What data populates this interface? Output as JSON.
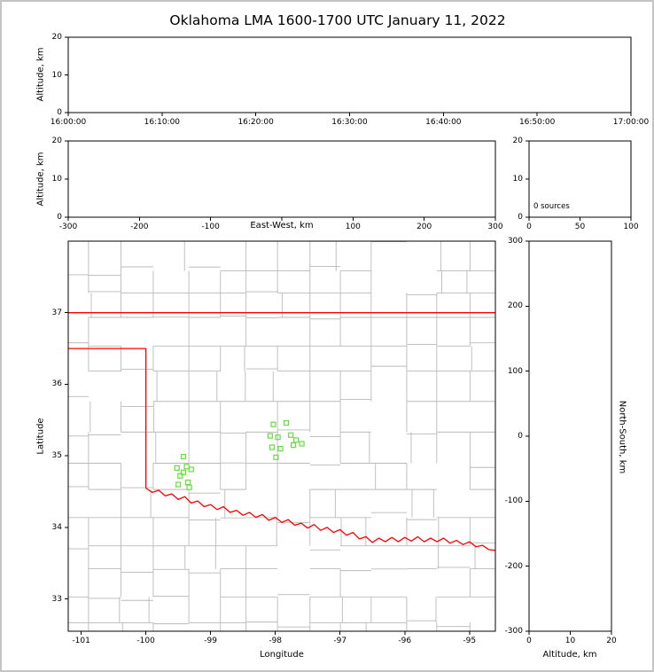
{
  "figure": {
    "frame_color": "#c4c4c4",
    "background": "#ffffff"
  },
  "chart_data": {
    "type": "scatter",
    "title": "Oklahoma LMA 1600-1700 UTC January 11, 2022",
    "legend_position": "none",
    "grid": false,
    "panels": {
      "time_height": {
        "description": "time vs altitude panel, no sources plotted",
        "xticks": [
          "16:00:00",
          "16:10:00",
          "16:20:00",
          "16:30:00",
          "16:40:00",
          "16:50:00",
          "17:00:00"
        ],
        "ylabel": "Altitude, km",
        "yticks": [
          "0",
          "10",
          "20"
        ],
        "ylim": [
          0,
          20
        ],
        "points": []
      },
      "ew_height": {
        "description": "east-west vs altitude panel, no sources plotted",
        "xlabel": "East-West, km",
        "xticks": [
          -300,
          -200,
          -100,
          0,
          100,
          200,
          300
        ],
        "xtick_labels": [
          "-300",
          "-200",
          "-100",
          "",
          "100",
          "200",
          "300"
        ],
        "xlim": [
          -300,
          300
        ],
        "ylabel": "Altitude, km",
        "yticks": [
          "0",
          "10",
          "20"
        ],
        "ylim": [
          0,
          20
        ],
        "points": []
      },
      "altitude_histogram": {
        "description": "altitude histogram panel",
        "annotation": "0 sources",
        "xticks": [
          "0",
          "50",
          "100"
        ],
        "xlim": [
          0,
          100
        ],
        "yticks": [
          "0",
          "10",
          "20"
        ],
        "ylim": [
          0,
          20
        ],
        "points": []
      },
      "map": {
        "description": "plan-view map of Oklahoma with county lines, red state/river borders and green source squares",
        "xlabel": "Longitude",
        "ylabel": "Latitude",
        "xticks": [
          "-101",
          "-100",
          "-99",
          "-98",
          "-97",
          "-96",
          "-95"
        ],
        "yticks": [
          "33",
          "34",
          "35",
          "36",
          "37"
        ],
        "xlim": [
          -101.2,
          -94.6
        ],
        "ylim": [
          32.55,
          38.0
        ],
        "grid_seed": 11,
        "county_line_color": "#b9b9b9",
        "state_border_color": "#ff0000",
        "source_color": "#62df3a",
        "state_border": [
          {
            "name": "oklahoma-kansas-border",
            "points": [
              [
                -101.2,
                37.0
              ],
              [
                -94.6,
                37.0
              ]
            ]
          },
          {
            "name": "panhandle-border",
            "points": [
              [
                -101.2,
                36.5
              ],
              [
                -100.0,
                36.5
              ],
              [
                -100.0,
                34.55
              ]
            ]
          },
          {
            "name": "red-river-border",
            "points": [
              [
                -100.0,
                34.55
              ],
              [
                -99.9,
                34.49
              ],
              [
                -99.8,
                34.52
              ],
              [
                -99.7,
                34.44
              ],
              [
                -99.6,
                34.47
              ],
              [
                -99.5,
                34.39
              ],
              [
                -99.4,
                34.43
              ],
              [
                -99.3,
                34.34
              ],
              [
                -99.2,
                34.37
              ],
              [
                -99.1,
                34.29
              ],
              [
                -99.0,
                34.32
              ],
              [
                -98.9,
                34.25
              ],
              [
                -98.8,
                34.29
              ],
              [
                -98.7,
                34.21
              ],
              [
                -98.6,
                34.24
              ],
              [
                -98.5,
                34.17
              ],
              [
                -98.4,
                34.21
              ],
              [
                -98.3,
                34.14
              ],
              [
                -98.2,
                34.18
              ],
              [
                -98.1,
                34.1
              ],
              [
                -98.0,
                34.14
              ],
              [
                -97.9,
                34.07
              ],
              [
                -97.8,
                34.11
              ],
              [
                -97.7,
                34.03
              ],
              [
                -97.6,
                34.06
              ],
              [
                -97.5,
                33.99
              ],
              [
                -97.4,
                34.04
              ],
              [
                -97.3,
                33.96
              ],
              [
                -97.2,
                34.0
              ],
              [
                -97.1,
                33.93
              ],
              [
                -97.0,
                33.97
              ],
              [
                -96.9,
                33.89
              ],
              [
                -96.8,
                33.93
              ],
              [
                -96.7,
                33.84
              ],
              [
                -96.6,
                33.87
              ],
              [
                -96.5,
                33.79
              ],
              [
                -96.4,
                33.85
              ],
              [
                -96.3,
                33.8
              ],
              [
                -96.2,
                33.86
              ],
              [
                -96.1,
                33.8
              ],
              [
                -96.0,
                33.86
              ],
              [
                -95.9,
                33.81
              ],
              [
                -95.8,
                33.87
              ],
              [
                -95.7,
                33.8
              ],
              [
                -95.6,
                33.85
              ],
              [
                -95.5,
                33.8
              ],
              [
                -95.4,
                33.85
              ],
              [
                -95.3,
                33.78
              ],
              [
                -95.2,
                33.82
              ],
              [
                -95.1,
                33.76
              ],
              [
                -95.0,
                33.8
              ],
              [
                -94.9,
                33.73
              ],
              [
                -94.8,
                33.75
              ],
              [
                -94.7,
                33.69
              ],
              [
                -94.6,
                33.68
              ]
            ]
          }
        ],
        "sources": [
          [
            -99.42,
            34.99
          ],
          [
            -99.52,
            34.83
          ],
          [
            -99.37,
            34.85
          ],
          [
            -99.3,
            34.81
          ],
          [
            -99.47,
            34.72
          ],
          [
            -99.42,
            34.77
          ],
          [
            -99.35,
            34.63
          ],
          [
            -99.5,
            34.6
          ],
          [
            -99.33,
            34.56
          ],
          [
            -98.03,
            35.44
          ],
          [
            -97.83,
            35.46
          ],
          [
            -98.08,
            35.28
          ],
          [
            -97.96,
            35.26
          ],
          [
            -97.76,
            35.29
          ],
          [
            -97.68,
            35.22
          ],
          [
            -98.05,
            35.12
          ],
          [
            -97.92,
            35.1
          ],
          [
            -97.72,
            35.15
          ],
          [
            -97.99,
            34.98
          ],
          [
            -97.59,
            35.17
          ]
        ]
      },
      "ns_height": {
        "description": "altitude vs north-south panel, no sources plotted",
        "xlabel": "Altitude, km",
        "xticks": [
          "0",
          "10",
          "20"
        ],
        "xlim": [
          0,
          20
        ],
        "ylabel": "North-South, km",
        "yticks": [
          "300",
          "200",
          "100",
          "0",
          "-100",
          "-200",
          "-300"
        ],
        "ylim": [
          -300,
          300
        ],
        "points": []
      }
    }
  }
}
